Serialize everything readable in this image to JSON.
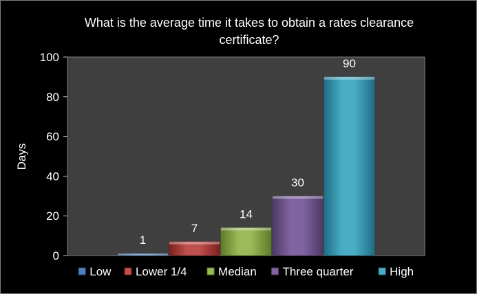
{
  "chart_data": {
    "type": "bar",
    "title_lines": [
      "What is the average time it takes to obtain a rates clearance",
      "certificate?"
    ],
    "xlabel": "",
    "ylabel": "Days",
    "ylim": [
      0,
      100
    ],
    "yticks": [
      "0",
      "20",
      "40",
      "60",
      "80",
      "100"
    ],
    "grid": false,
    "legend_position": "bottom",
    "series": [
      {
        "name": "Low",
        "value": 1,
        "label": "1",
        "color": "#4f81bd",
        "dark": "#2c4d75"
      },
      {
        "name": "Lower 1/4",
        "value": 7,
        "label": "7",
        "color": "#c0504d",
        "dark": "#7b1f1c"
      },
      {
        "name": "Median",
        "value": 14,
        "label": "14",
        "color": "#9bbb59",
        "dark": "#5f7a2a"
      },
      {
        "name": "Three quarter",
        "value": 30,
        "label": "30",
        "color": "#8064a2",
        "dark": "#4d3a66"
      },
      {
        "name": "High",
        "value": 90,
        "label": "90",
        "color": "#4bacc6",
        "dark": "#1f6f86"
      }
    ],
    "colors": {
      "plot_area": "#3f3f3f",
      "background": "#000000",
      "text": "#ffffff"
    }
  }
}
